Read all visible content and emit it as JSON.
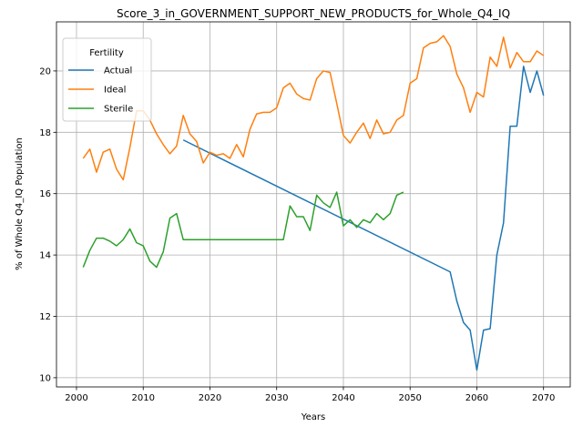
{
  "chart_data": {
    "type": "line",
    "title": "Score_3_in_GOVERNMENT_SUPPORT_NEW_PRODUCTS_for_Whole_Q4_IQ",
    "xlabel": "Years",
    "ylabel": "% of Whole Q4_IQ Population",
    "xlim": [
      1997,
      2074
    ],
    "ylim": [
      9.7,
      21.6
    ],
    "xticks": [
      2000,
      2010,
      2020,
      2030,
      2040,
      2050,
      2060,
      2070
    ],
    "yticks": [
      10,
      12,
      14,
      16,
      18,
      20
    ],
    "grid": true,
    "legend": {
      "title": "Fertility",
      "placement": "upper-left"
    },
    "series": [
      {
        "name": "Actual",
        "color": "#1f77b4",
        "x": [
          2016,
          2056,
          2057,
          2058,
          2059,
          2060,
          2061,
          2062,
          2063,
          2064,
          2065,
          2066,
          2067,
          2068,
          2069,
          2070
        ],
        "y": [
          17.75,
          13.45,
          12.5,
          11.8,
          11.55,
          10.25,
          11.55,
          11.6,
          14.0,
          15.05,
          18.2,
          18.2,
          20.15,
          19.3,
          20.0,
          19.2
        ]
      },
      {
        "name": "Ideal",
        "color": "#ff7f0e",
        "x": [
          2001,
          2002,
          2003,
          2004,
          2005,
          2006,
          2007,
          2008,
          2009,
          2010,
          2011,
          2012,
          2013,
          2014,
          2015,
          2016,
          2017,
          2018,
          2019,
          2020,
          2021,
          2022,
          2023,
          2024,
          2025,
          2026,
          2027,
          2028,
          2029,
          2030,
          2031,
          2032,
          2033,
          2034,
          2035,
          2036,
          2037,
          2038,
          2039,
          2040,
          2041,
          2042,
          2043,
          2044,
          2045,
          2046,
          2047,
          2048,
          2049,
          2050,
          2051,
          2052,
          2053,
          2054,
          2055,
          2056,
          2057,
          2058,
          2059,
          2060,
          2061,
          2062,
          2063,
          2064,
          2065,
          2066,
          2067,
          2068,
          2069,
          2070
        ],
        "y": [
          17.15,
          17.45,
          16.7,
          17.35,
          17.45,
          16.8,
          16.45,
          17.5,
          18.7,
          18.7,
          18.4,
          17.95,
          17.6,
          17.3,
          17.55,
          18.55,
          17.95,
          17.7,
          17.0,
          17.35,
          17.25,
          17.3,
          17.15,
          17.6,
          17.2,
          18.1,
          18.6,
          18.65,
          18.65,
          18.8,
          19.45,
          19.6,
          19.25,
          19.1,
          19.05,
          19.75,
          20.0,
          19.95,
          18.95,
          17.9,
          17.65,
          18.0,
          18.3,
          17.8,
          18.4,
          17.95,
          18.0,
          18.4,
          18.55,
          19.6,
          19.75,
          20.75,
          20.9,
          20.95,
          21.15,
          20.8,
          19.9,
          19.45,
          18.65,
          19.3,
          19.15,
          20.45,
          20.15,
          21.1,
          20.1,
          20.6,
          20.3,
          20.3,
          20.65,
          20.5
        ]
      },
      {
        "name": "Sterile",
        "color": "#2ca02c",
        "x": [
          2001,
          2002,
          2003,
          2004,
          2005,
          2006,
          2007,
          2008,
          2009,
          2010,
          2011,
          2012,
          2013,
          2014,
          2015,
          2016,
          2017,
          2018,
          2019,
          2020,
          2021,
          2022,
          2023,
          2024,
          2025,
          2026,
          2027,
          2028,
          2029,
          2030,
          2031,
          2032,
          2033,
          2034,
          2035,
          2036,
          2037,
          2038,
          2039,
          2040,
          2041,
          2042,
          2043,
          2044,
          2045,
          2046,
          2047,
          2048,
          2049
        ],
        "y": [
          13.6,
          14.15,
          14.55,
          14.55,
          14.45,
          14.3,
          14.5,
          14.85,
          14.4,
          14.3,
          13.8,
          13.6,
          14.1,
          15.2,
          15.35,
          14.5,
          14.5,
          14.5,
          14.5,
          14.5,
          14.5,
          14.5,
          14.5,
          14.5,
          14.5,
          14.5,
          14.5,
          14.5,
          14.5,
          14.5,
          14.5,
          15.6,
          15.25,
          15.25,
          14.8,
          15.95,
          15.7,
          15.55,
          16.05,
          14.95,
          15.15,
          14.9,
          15.15,
          15.05,
          15.35,
          15.15,
          15.35,
          15.95,
          16.05
        ]
      }
    ]
  }
}
